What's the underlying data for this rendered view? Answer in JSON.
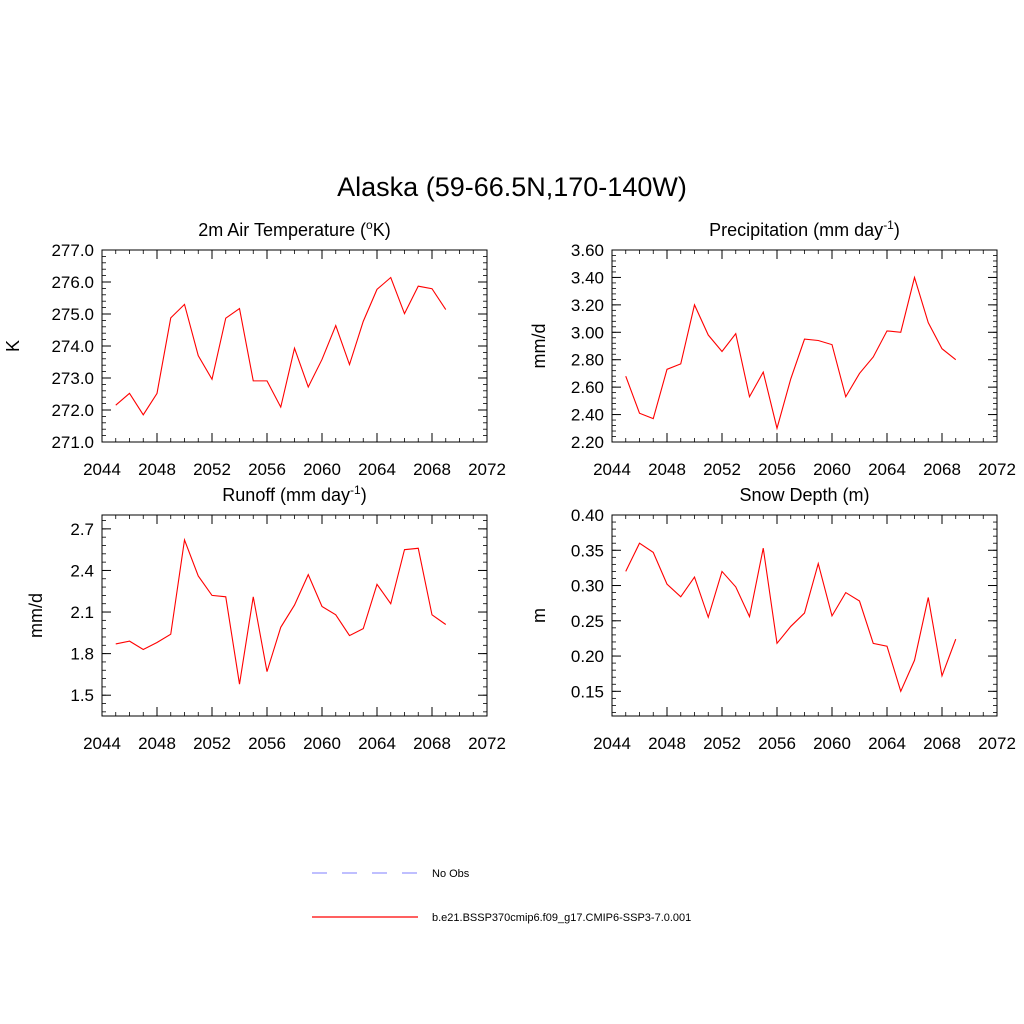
{
  "figure_title": "Alaska (59-66.5N,170-140W)",
  "legend": [
    {
      "label": "No Obs",
      "color": "#9999ff",
      "style": "dashed"
    },
    {
      "label": "b.e21.BSSP370cmip6.f09_g17.CMIP6-SSP3-7.0.001",
      "color": "#ff0000",
      "style": "solid"
    }
  ],
  "chart_data": [
    {
      "type": "line",
      "title": "2m Air Temperature (",
      "title_sup": "o",
      "title_after": "K)",
      "xlabel": "",
      "ylabel": "K",
      "xlim": [
        2044,
        2072
      ],
      "ylim": [
        271.0,
        277.0
      ],
      "xticks": [
        2044,
        2048,
        2052,
        2056,
        2060,
        2064,
        2068,
        2072
      ],
      "xtick_labels": [
        "2044",
        "2048",
        "2052",
        "2056",
        "2060",
        "2064",
        "2068",
        "2072"
      ],
      "yticks": [
        271.0,
        272.0,
        273.0,
        274.0,
        275.0,
        276.0,
        277.0
      ],
      "ytick_labels": [
        "271.0",
        "272.0",
        "273.0",
        "274.0",
        "275.0",
        "276.0",
        "277.0"
      ],
      "series": [
        {
          "color": "#ff0000",
          "x": [
            2045,
            2046,
            2047,
            2048,
            2049,
            2050,
            2051,
            2052,
            2053,
            2054,
            2055,
            2056,
            2057,
            2058,
            2059,
            2060,
            2061,
            2062,
            2063,
            2064,
            2065,
            2066,
            2067,
            2068,
            2069
          ],
          "y": [
            272.15,
            272.52,
            271.85,
            272.52,
            274.88,
            275.3,
            273.7,
            272.96,
            274.87,
            275.17,
            272.91,
            272.91,
            272.09,
            273.93,
            272.72,
            273.58,
            274.64,
            273.42,
            274.77,
            275.77,
            276.14,
            275.01,
            275.87,
            275.79,
            275.14
          ]
        }
      ]
    },
    {
      "type": "line",
      "title": "Precipitation (mm day",
      "title_sup": "-1",
      "title_after": ")",
      "xlabel": "",
      "ylabel": "mm/d",
      "xlim": [
        2044,
        2072
      ],
      "ylim": [
        2.2,
        3.6
      ],
      "xticks": [
        2044,
        2048,
        2052,
        2056,
        2060,
        2064,
        2068,
        2072
      ],
      "xtick_labels": [
        "2044",
        "2048",
        "2052",
        "2056",
        "2060",
        "2064",
        "2068",
        "2072"
      ],
      "yticks": [
        2.2,
        2.4,
        2.6,
        2.8,
        3.0,
        3.2,
        3.4,
        3.6
      ],
      "ytick_labels": [
        "2.20",
        "2.40",
        "2.60",
        "2.80",
        "3.00",
        "3.20",
        "3.40",
        "3.60"
      ],
      "series": [
        {
          "color": "#ff0000",
          "x": [
            2045,
            2046,
            2047,
            2048,
            2049,
            2050,
            2051,
            2052,
            2053,
            2054,
            2055,
            2056,
            2057,
            2058,
            2059,
            2060,
            2061,
            2062,
            2063,
            2064,
            2065,
            2066,
            2067,
            2068,
            2069
          ],
          "y": [
            2.68,
            2.41,
            2.37,
            2.73,
            2.77,
            3.2,
            2.98,
            2.86,
            2.99,
            2.53,
            2.71,
            2.3,
            2.66,
            2.95,
            2.94,
            2.91,
            2.53,
            2.7,
            2.82,
            3.01,
            3.0,
            3.4,
            3.07,
            2.88,
            2.8
          ]
        }
      ]
    },
    {
      "type": "line",
      "title": "Runoff (mm day",
      "title_sup": "-1",
      "title_after": ")",
      "xlabel": "",
      "ylabel": "mm/d",
      "xlim": [
        2044,
        2072
      ],
      "ylim": [
        1.35,
        2.8
      ],
      "xticks": [
        2044,
        2048,
        2052,
        2056,
        2060,
        2064,
        2068,
        2072
      ],
      "xtick_labels": [
        "2044",
        "2048",
        "2052",
        "2056",
        "2060",
        "2064",
        "2068",
        "2072"
      ],
      "yticks": [
        1.5,
        1.8,
        2.1,
        2.4,
        2.7
      ],
      "ytick_labels": [
        "1.5",
        "1.8",
        "2.1",
        "2.4",
        "2.7"
      ],
      "series": [
        {
          "color": "#ff0000",
          "x": [
            2045,
            2046,
            2047,
            2048,
            2049,
            2050,
            2051,
            2052,
            2053,
            2054,
            2055,
            2056,
            2057,
            2058,
            2059,
            2060,
            2061,
            2062,
            2063,
            2064,
            2065,
            2066,
            2067,
            2068,
            2069
          ],
          "y": [
            1.87,
            1.89,
            1.83,
            1.88,
            1.94,
            2.62,
            2.36,
            2.22,
            2.21,
            1.58,
            2.21,
            1.67,
            1.99,
            2.15,
            2.37,
            2.14,
            2.08,
            1.93,
            1.98,
            2.3,
            2.16,
            2.55,
            2.56,
            2.08,
            2.01
          ]
        }
      ]
    },
    {
      "type": "line",
      "title": "Snow Depth (m)",
      "title_sup": "",
      "title_after": "",
      "xlabel": "",
      "ylabel": "m",
      "xlim": [
        2044,
        2072
      ],
      "ylim": [
        0.115,
        0.4
      ],
      "xticks": [
        2044,
        2048,
        2052,
        2056,
        2060,
        2064,
        2068,
        2072
      ],
      "xtick_labels": [
        "2044",
        "2048",
        "2052",
        "2056",
        "2060",
        "2064",
        "2068",
        "2072"
      ],
      "yticks": [
        0.15,
        0.2,
        0.25,
        0.3,
        0.35,
        0.4
      ],
      "ytick_labels": [
        "0.15",
        "0.20",
        "0.25",
        "0.30",
        "0.35",
        "0.40"
      ],
      "series": [
        {
          "color": "#ff0000",
          "x": [
            2045,
            2046,
            2047,
            2048,
            2049,
            2050,
            2051,
            2052,
            2053,
            2054,
            2055,
            2056,
            2057,
            2058,
            2059,
            2060,
            2061,
            2062,
            2063,
            2064,
            2065,
            2066,
            2067,
            2068,
            2069
          ],
          "y": [
            0.32,
            0.36,
            0.347,
            0.302,
            0.284,
            0.312,
            0.255,
            0.32,
            0.298,
            0.256,
            0.353,
            0.218,
            0.242,
            0.261,
            0.331,
            0.257,
            0.29,
            0.278,
            0.218,
            0.214,
            0.15,
            0.194,
            0.283,
            0.172,
            0.224
          ]
        }
      ]
    }
  ]
}
